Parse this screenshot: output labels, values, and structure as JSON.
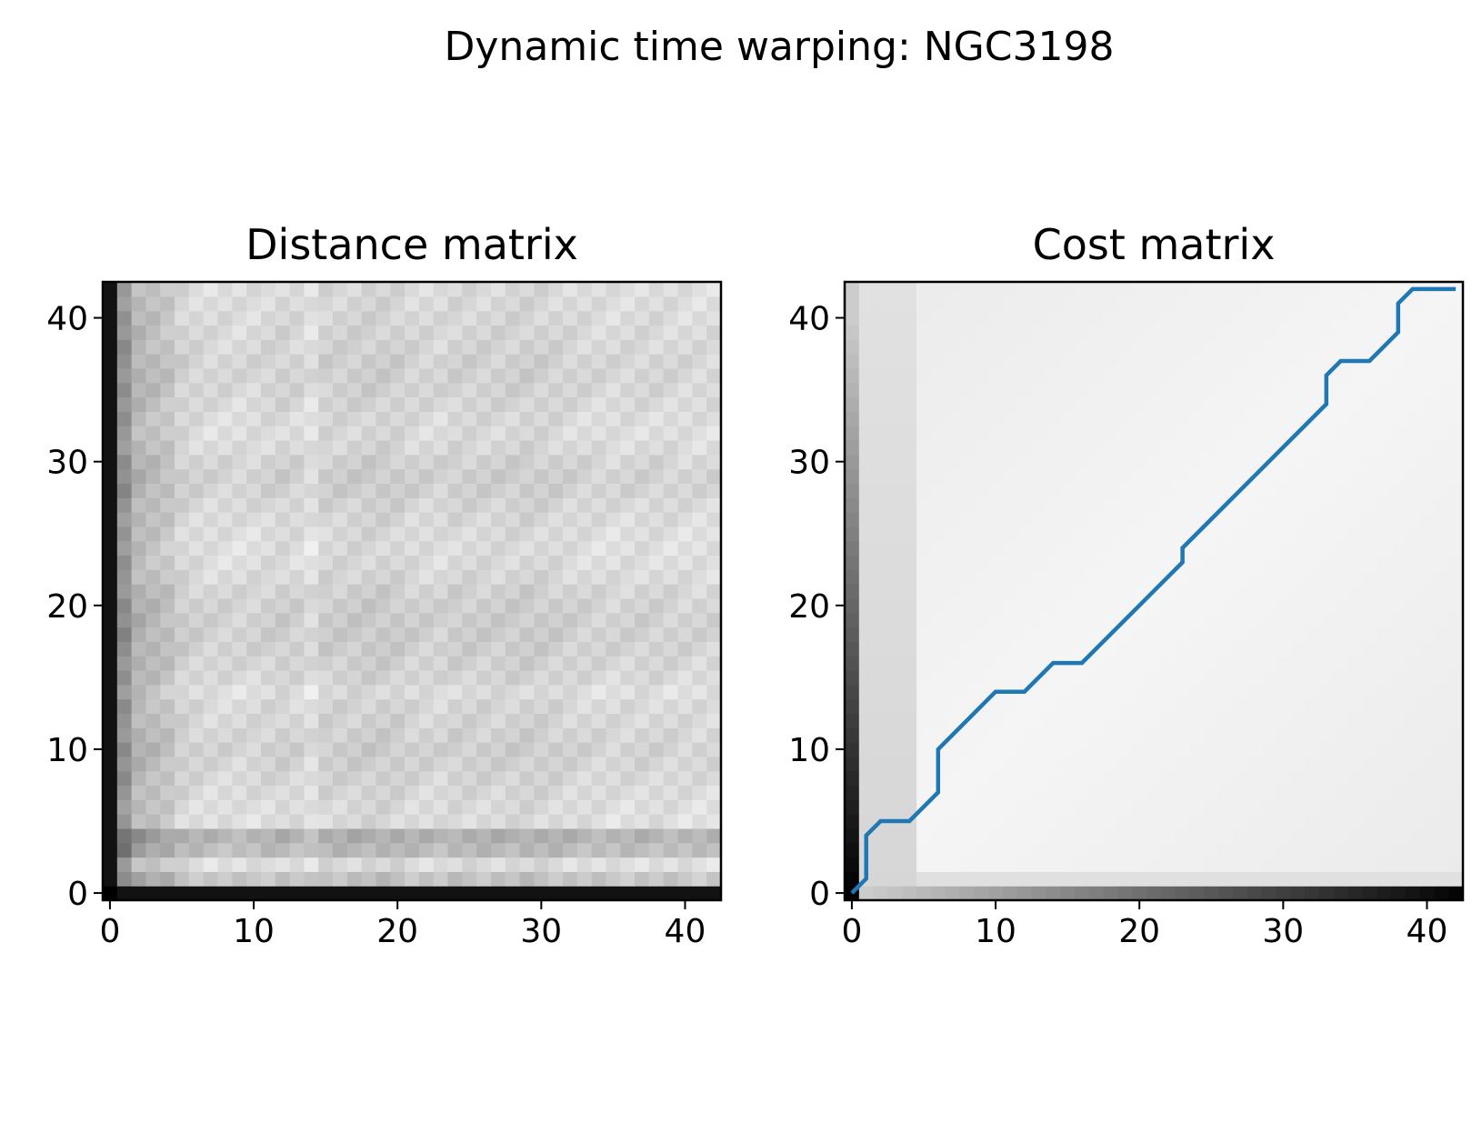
{
  "figure": {
    "suptitle": "Dynamic time warping: NGC3198"
  },
  "chart_data": [
    {
      "type": "heatmap",
      "title": "Distance matrix",
      "xlabel": "",
      "ylabel": "",
      "xlim": [
        -0.5,
        42.5
      ],
      "ylim": [
        -0.5,
        42.5
      ],
      "xticks": [
        0,
        10,
        20,
        30,
        40
      ],
      "yticks": [
        0,
        10,
        20,
        30,
        40
      ],
      "colormap": "gray_r",
      "grid": false,
      "shape": [
        43,
        43
      ],
      "column_profile_gray": [
        0.98,
        0.6,
        0.35,
        0.3,
        0.25,
        0.15,
        0.12,
        0.1,
        0.1,
        0.09,
        0.1,
        0.12,
        0.14,
        0.12,
        0.06,
        0.15,
        0.15,
        0.16,
        0.17,
        0.17,
        0.16,
        0.13,
        0.12,
        0.11,
        0.14,
        0.14,
        0.14,
        0.14,
        0.15,
        0.16,
        0.15,
        0.14,
        0.12,
        0.11,
        0.1,
        0.09,
        0.1,
        0.11,
        0.11,
        0.1,
        0.09,
        0.09,
        0.09
      ],
      "row_profile_gray": [
        0.98,
        0.22,
        0.05,
        0.28,
        0.35,
        0.05,
        0.06,
        0.08,
        0.1,
        0.12,
        0.14,
        0.12,
        0.1,
        0.09,
        0.05,
        0.1,
        0.12,
        0.14,
        0.15,
        0.15,
        0.14,
        0.12,
        0.08,
        0.06,
        0.05,
        0.06,
        0.08,
        0.1,
        0.13,
        0.14,
        0.12,
        0.08,
        0.06,
        0.07,
        0.09,
        0.11,
        0.12,
        0.12,
        0.1,
        0.09,
        0.08,
        0.07,
        0.06
      ]
    },
    {
      "type": "heatmap",
      "title": "Cost matrix",
      "xlabel": "",
      "ylabel": "",
      "xlim": [
        -0.5,
        42.5
      ],
      "ylim": [
        -0.5,
        42.5
      ],
      "xticks": [
        0,
        10,
        20,
        30,
        40
      ],
      "yticks": [
        0,
        10,
        20,
        30,
        40
      ],
      "colormap": "gray_r",
      "grid": false,
      "shape": [
        43,
        43
      ],
      "path_color": "#1f77b4",
      "path": {
        "name": "",
        "x": [
          0,
          1,
          1,
          2,
          4,
          6,
          6,
          10,
          12,
          14,
          16,
          23,
          23,
          33,
          33,
          34,
          36,
          38,
          38,
          39,
          42
        ],
        "y": [
          0,
          1,
          4,
          5,
          5,
          7,
          10,
          14,
          14,
          16,
          16,
          23,
          24,
          34,
          36,
          37,
          37,
          39,
          41,
          42,
          42
        ]
      }
    }
  ]
}
